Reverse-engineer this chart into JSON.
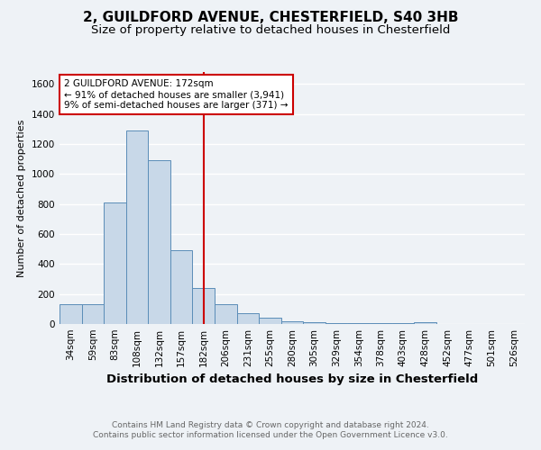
{
  "title_line1": "2, GUILDFORD AVENUE, CHESTERFIELD, S40 3HB",
  "title_line2": "Size of property relative to detached houses in Chesterfield",
  "xlabel": "Distribution of detached houses by size in Chesterfield",
  "ylabel": "Number of detached properties",
  "categories": [
    "34sqm",
    "59sqm",
    "83sqm",
    "108sqm",
    "132sqm",
    "157sqm",
    "182sqm",
    "206sqm",
    "231sqm",
    "255sqm",
    "280sqm",
    "305sqm",
    "329sqm",
    "354sqm",
    "378sqm",
    "403sqm",
    "428sqm",
    "452sqm",
    "477sqm",
    "501sqm",
    "526sqm"
  ],
  "values": [
    130,
    130,
    810,
    1290,
    1090,
    490,
    240,
    135,
    70,
    45,
    20,
    10,
    5,
    5,
    5,
    5,
    10,
    3,
    3,
    2,
    2
  ],
  "bar_color": "#c8d8e8",
  "bar_edge_color": "#5b8db8",
  "vline_x_index": 6,
  "vline_color": "#cc0000",
  "annotation_title": "2 GUILDFORD AVENUE: 172sqm",
  "annotation_line1": "← 91% of detached houses are smaller (3,941)",
  "annotation_line2": "9% of semi-detached houses are larger (371) →",
  "annotation_box_color": "#ffffff",
  "annotation_box_edge": "#cc0000",
  "ylim": [
    0,
    1680
  ],
  "yticks": [
    0,
    200,
    400,
    600,
    800,
    1000,
    1200,
    1400,
    1600
  ],
  "footer_line1": "Contains HM Land Registry data © Crown copyright and database right 2024.",
  "footer_line2": "Contains public sector information licensed under the Open Government Licence v3.0.",
  "bg_color": "#eef2f6",
  "grid_color": "#ffffff",
  "title1_fontsize": 11,
  "title2_fontsize": 9.5,
  "xlabel_fontsize": 9.5,
  "ylabel_fontsize": 8,
  "tick_fontsize": 7.5,
  "footer_fontsize": 6.5,
  "annotation_fontsize": 7.5
}
